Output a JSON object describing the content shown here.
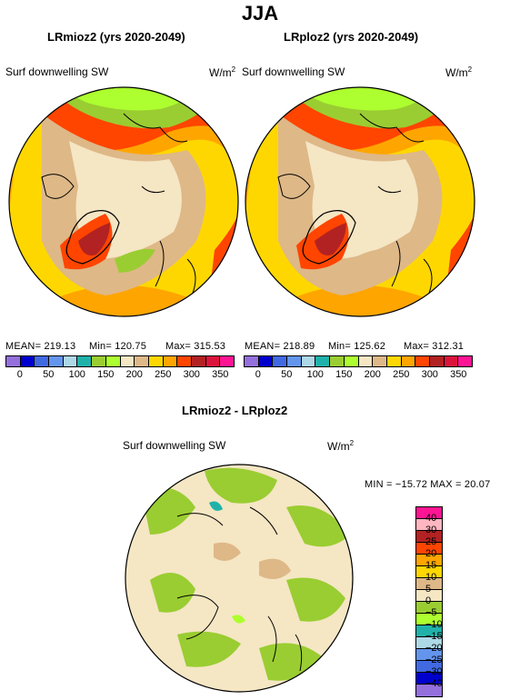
{
  "page_title": "JJA",
  "panels": [
    {
      "title": "LRmioz2 (yrs 2020-2049)",
      "variable": "Surf downwelling SW",
      "units": "W/m",
      "units_sup": "2",
      "stats": {
        "mean": "MEAN= 219.13",
        "min": "Min= 120.75",
        "max": "Max= 315.53"
      }
    },
    {
      "title": "LRploz2 (yrs 2020-2049)",
      "variable": "Surf downwelling SW",
      "units": "W/m",
      "units_sup": "2",
      "stats": {
        "mean": "MEAN= 218.89",
        "min": "Min= 125.62",
        "max": "Max= 312.31"
      }
    },
    {
      "title": "LRmioz2 - LRploz2",
      "variable": "Surf downwelling SW",
      "units": "W/m",
      "units_sup": "2",
      "stats": {
        "minmax": "MIN = −15.72 MAX =  20.07"
      }
    }
  ],
  "colorbar_abs": {
    "colors": [
      "#9370db",
      "#0000cd",
      "#4169e1",
      "#6495ed",
      "#add8e6",
      "#20b2aa",
      "#9acd32",
      "#adff2f",
      "#f5e6c4",
      "#deb887",
      "#ffd700",
      "#ffa500",
      "#ff4500",
      "#b22222",
      "#dc143c",
      "#ff1493"
    ],
    "labels": [
      "0",
      "50",
      "100",
      "150",
      "200",
      "250",
      "300",
      "350"
    ],
    "labels_extra": [
      "50"
    ]
  },
  "colorbar_diff": {
    "colors": [
      "#ff1493",
      "#ffb6c1",
      "#b22222",
      "#ff4500",
      "#ffa500",
      "#ffd700",
      "#deb887",
      "#f5e6c4",
      "#9acd32",
      "#adff2f",
      "#20b2aa",
      "#add8e6",
      "#6495ed",
      "#4169e1",
      "#0000cd",
      "#9370db"
    ],
    "labels": [
      "40",
      "30",
      "25",
      "20",
      "15",
      "10",
      "5",
      "0",
      "−5",
      "−10",
      "−15",
      "−20",
      "−25",
      "−30",
      "−40"
    ]
  }
}
